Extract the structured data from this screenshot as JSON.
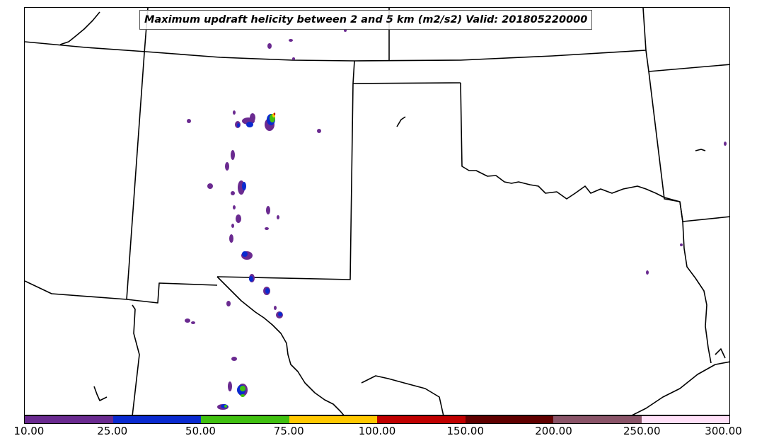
{
  "title": "Maximum updraft helicity between 2 and 5 km (m2/s2) Valid: 201805220000",
  "legend": {
    "segments": [
      {
        "from": "10.00",
        "to": "25.00",
        "color": "#6a2a90"
      },
      {
        "from": "25.00",
        "to": "50.00",
        "color": "#0a2ad0"
      },
      {
        "from": "50.00",
        "to": "75.00",
        "color": "#40c010"
      },
      {
        "from": "75.00",
        "to": "100.00",
        "color": "#ffc800"
      },
      {
        "from": "100.00",
        "to": "150.00",
        "color": "#c00000"
      },
      {
        "from": "150.00",
        "to": "200.00",
        "color": "#600000"
      },
      {
        "from": "200.00",
        "to": "250.00",
        "color": "#8a5468"
      },
      {
        "from": "250.00",
        "to": "300.00",
        "color": "#ffe0f8"
      }
    ],
    "tick_labels": [
      "10.00",
      "25.00",
      "50.00",
      "75.00",
      "100.00",
      "150.00",
      "200.00",
      "250.00",
      "300.00"
    ]
  }
}
